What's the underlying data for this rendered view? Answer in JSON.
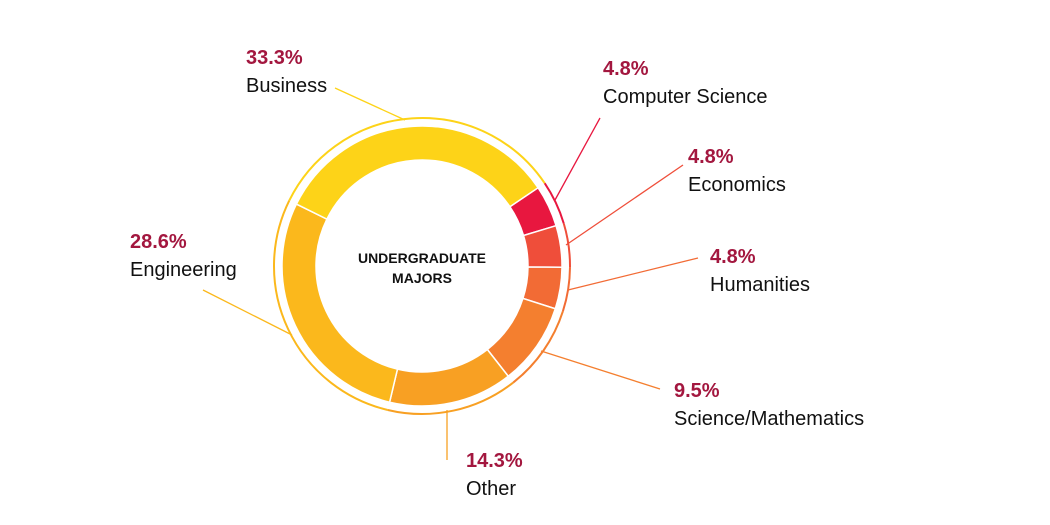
{
  "chart_data": {
    "type": "pie",
    "variant": "donut",
    "center_label": [
      "UNDERGRADUATE",
      "MAJORS"
    ],
    "slices": [
      {
        "label": "Computer Science",
        "value": 4.8,
        "display": "4.8%",
        "color": "#e8173f"
      },
      {
        "label": "Economics",
        "value": 4.8,
        "display": "4.8%",
        "color": "#ef4e3a"
      },
      {
        "label": "Humanities",
        "value": 4.8,
        "display": "4.8%",
        "color": "#f26b35"
      },
      {
        "label": "Science/Mathematics",
        "value": 9.5,
        "display": "9.5%",
        "color": "#f47f2f"
      },
      {
        "label": "Other",
        "value": 14.3,
        "display": "14.3%",
        "color": "#f8a023"
      },
      {
        "label": "Engineering",
        "value": 28.6,
        "display": "28.6%",
        "color": "#fbb81c"
      },
      {
        "label": "Business",
        "value": 33.3,
        "display": "33.3%",
        "color": "#fdd318"
      }
    ],
    "percent_color": "#a3173f",
    "legend": "none"
  }
}
